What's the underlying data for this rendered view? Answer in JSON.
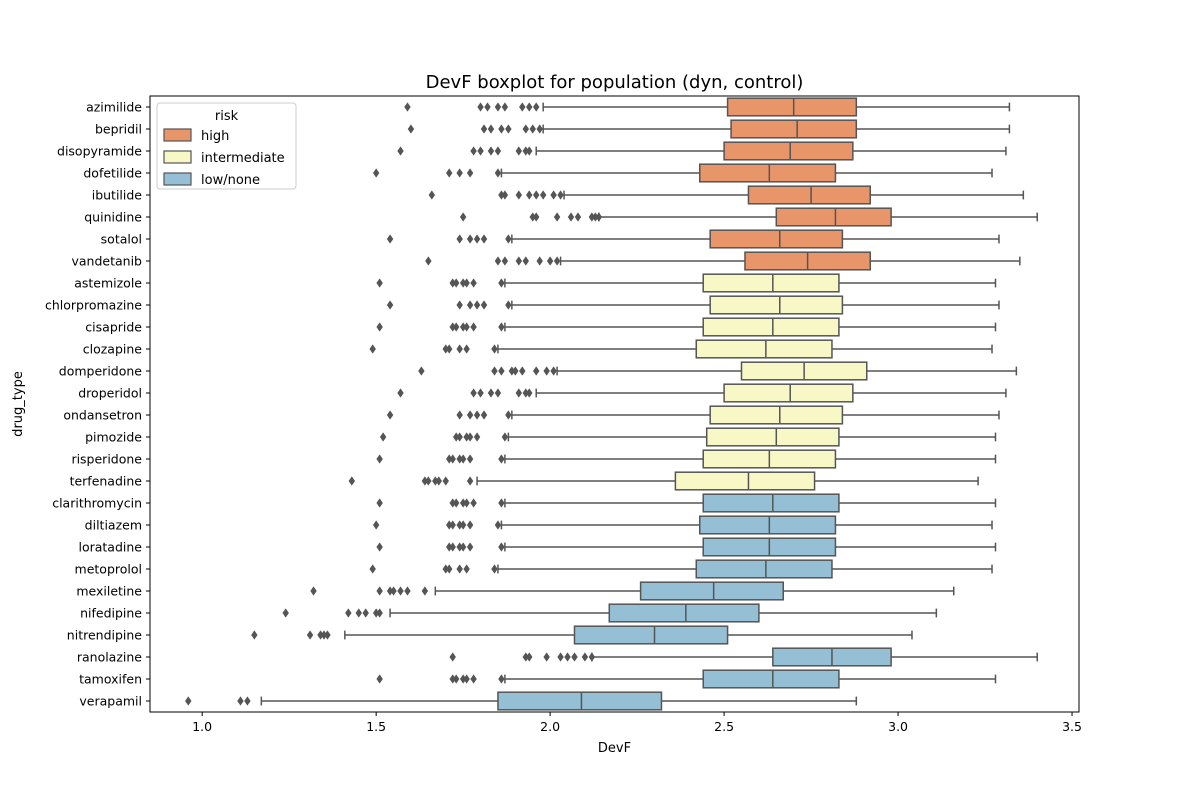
{
  "chart_data": {
    "type": "boxplot",
    "orientation": "horizontal",
    "title": "DevF boxplot for population (dyn, control)",
    "xlabel": "DevF",
    "ylabel": "drug_type",
    "xlim": [
      0.85,
      3.52
    ],
    "xticks": [
      1.0,
      1.5,
      2.0,
      2.5,
      3.0,
      3.5
    ],
    "xtick_labels": [
      "1.0",
      "1.5",
      "2.0",
      "2.5",
      "3.0",
      "3.5"
    ],
    "grid": false,
    "legend": {
      "title": "risk",
      "position": "upper-left",
      "entries": [
        {
          "label": "high",
          "color": "#e8956a"
        },
        {
          "label": "intermediate",
          "color": "#f8f7c6"
        },
        {
          "label": "low/none",
          "color": "#94bfd5"
        }
      ]
    },
    "colors": {
      "high": "#e8956a",
      "intermediate": "#f8f7c6",
      "low/none": "#94bfd5",
      "edge": "#555555",
      "outlier": "#555555"
    },
    "boxes": [
      {
        "drug": "azimilide",
        "risk": "high",
        "whisker_low": 1.98,
        "q1": 2.51,
        "median": 2.7,
        "q3": 2.88,
        "whisker_high": 3.32,
        "outliers": [
          1.59,
          1.8,
          1.82,
          1.85,
          1.87,
          1.92,
          1.94,
          1.96
        ]
      },
      {
        "drug": "bepridil",
        "risk": "high",
        "whisker_low": 1.98,
        "q1": 2.52,
        "median": 2.71,
        "q3": 2.88,
        "whisker_high": 3.32,
        "outliers": [
          1.6,
          1.81,
          1.83,
          1.86,
          1.88,
          1.93,
          1.95,
          1.97
        ]
      },
      {
        "drug": "disopyramide",
        "risk": "high",
        "whisker_low": 1.96,
        "q1": 2.5,
        "median": 2.69,
        "q3": 2.87,
        "whisker_high": 3.31,
        "outliers": [
          1.57,
          1.78,
          1.8,
          1.83,
          1.85,
          1.91,
          1.93,
          1.94
        ]
      },
      {
        "drug": "dofetilide",
        "risk": "high",
        "whisker_low": 1.86,
        "q1": 2.43,
        "median": 2.63,
        "q3": 2.82,
        "whisker_high": 3.27,
        "outliers": [
          1.5,
          1.71,
          1.74,
          1.77,
          1.85
        ]
      },
      {
        "drug": "ibutilide",
        "risk": "high",
        "whisker_low": 2.04,
        "q1": 2.57,
        "median": 2.75,
        "q3": 2.92,
        "whisker_high": 3.36,
        "outliers": [
          1.66,
          1.86,
          1.87,
          1.91,
          1.94,
          1.96,
          1.98,
          2.01,
          2.03
        ]
      },
      {
        "drug": "quinidine",
        "risk": "high",
        "whisker_low": 2.14,
        "q1": 2.65,
        "median": 2.82,
        "q3": 2.98,
        "whisker_high": 3.4,
        "outliers": [
          1.75,
          1.95,
          1.96,
          2.02,
          2.06,
          2.08,
          2.12,
          2.13,
          2.14
        ]
      },
      {
        "drug": "sotalol",
        "risk": "high",
        "whisker_low": 1.89,
        "q1": 2.46,
        "median": 2.66,
        "q3": 2.84,
        "whisker_high": 3.29,
        "outliers": [
          1.54,
          1.74,
          1.77,
          1.79,
          1.81,
          1.88
        ]
      },
      {
        "drug": "vandetanib",
        "risk": "high",
        "whisker_low": 2.03,
        "q1": 2.56,
        "median": 2.74,
        "q3": 2.92,
        "whisker_high": 3.35,
        "outliers": [
          1.65,
          1.85,
          1.87,
          1.91,
          1.93,
          1.97,
          2.0,
          2.02
        ]
      },
      {
        "drug": "astemizole",
        "risk": "intermediate",
        "whisker_low": 1.87,
        "q1": 2.44,
        "median": 2.64,
        "q3": 2.83,
        "whisker_high": 3.28,
        "outliers": [
          1.51,
          1.72,
          1.73,
          1.75,
          1.76,
          1.78,
          1.86
        ]
      },
      {
        "drug": "chlorpromazine",
        "risk": "intermediate",
        "whisker_low": 1.89,
        "q1": 2.46,
        "median": 2.66,
        "q3": 2.84,
        "whisker_high": 3.29,
        "outliers": [
          1.54,
          1.74,
          1.77,
          1.79,
          1.81,
          1.88
        ]
      },
      {
        "drug": "cisapride",
        "risk": "intermediate",
        "whisker_low": 1.87,
        "q1": 2.44,
        "median": 2.64,
        "q3": 2.83,
        "whisker_high": 3.28,
        "outliers": [
          1.51,
          1.72,
          1.73,
          1.75,
          1.76,
          1.78,
          1.86
        ]
      },
      {
        "drug": "clozapine",
        "risk": "intermediate",
        "whisker_low": 1.85,
        "q1": 2.42,
        "median": 2.62,
        "q3": 2.81,
        "whisker_high": 3.27,
        "outliers": [
          1.49,
          1.7,
          1.71,
          1.74,
          1.76,
          1.84
        ]
      },
      {
        "drug": "domperidone",
        "risk": "intermediate",
        "whisker_low": 2.02,
        "q1": 2.55,
        "median": 2.73,
        "q3": 2.91,
        "whisker_high": 3.34,
        "outliers": [
          1.63,
          1.84,
          1.86,
          1.89,
          1.9,
          1.92,
          1.96,
          1.99,
          2.01
        ]
      },
      {
        "drug": "droperidol",
        "risk": "intermediate",
        "whisker_low": 1.96,
        "q1": 2.5,
        "median": 2.69,
        "q3": 2.87,
        "whisker_high": 3.31,
        "outliers": [
          1.57,
          1.78,
          1.8,
          1.83,
          1.85,
          1.91,
          1.93,
          1.94
        ]
      },
      {
        "drug": "ondansetron",
        "risk": "intermediate",
        "whisker_low": 1.89,
        "q1": 2.46,
        "median": 2.66,
        "q3": 2.84,
        "whisker_high": 3.29,
        "outliers": [
          1.54,
          1.74,
          1.77,
          1.79,
          1.81,
          1.88
        ]
      },
      {
        "drug": "pimozide",
        "risk": "intermediate",
        "whisker_low": 1.88,
        "q1": 2.45,
        "median": 2.65,
        "q3": 2.83,
        "whisker_high": 3.28,
        "outliers": [
          1.52,
          1.73,
          1.74,
          1.76,
          1.77,
          1.79,
          1.87
        ]
      },
      {
        "drug": "risperidone",
        "risk": "intermediate",
        "whisker_low": 1.87,
        "q1": 2.44,
        "median": 2.63,
        "q3": 2.82,
        "whisker_high": 3.28,
        "outliers": [
          1.51,
          1.71,
          1.72,
          1.74,
          1.75,
          1.77,
          1.86
        ]
      },
      {
        "drug": "terfenadine",
        "risk": "intermediate",
        "whisker_low": 1.79,
        "q1": 2.36,
        "median": 2.57,
        "q3": 2.76,
        "whisker_high": 3.23,
        "outliers": [
          1.43,
          1.64,
          1.65,
          1.67,
          1.68,
          1.7,
          1.77
        ]
      },
      {
        "drug": "clarithromycin",
        "risk": "low/none",
        "whisker_low": 1.87,
        "q1": 2.44,
        "median": 2.64,
        "q3": 2.83,
        "whisker_high": 3.28,
        "outliers": [
          1.51,
          1.72,
          1.73,
          1.75,
          1.76,
          1.78,
          1.86
        ]
      },
      {
        "drug": "diltiazem",
        "risk": "low/none",
        "whisker_low": 1.86,
        "q1": 2.43,
        "median": 2.63,
        "q3": 2.82,
        "whisker_high": 3.27,
        "outliers": [
          1.5,
          1.71,
          1.72,
          1.74,
          1.75,
          1.77,
          1.85
        ]
      },
      {
        "drug": "loratadine",
        "risk": "low/none",
        "whisker_low": 1.87,
        "q1": 2.44,
        "median": 2.63,
        "q3": 2.82,
        "whisker_high": 3.28,
        "outliers": [
          1.51,
          1.71,
          1.72,
          1.74,
          1.75,
          1.77,
          1.86
        ]
      },
      {
        "drug": "metoprolol",
        "risk": "low/none",
        "whisker_low": 1.85,
        "q1": 2.42,
        "median": 2.62,
        "q3": 2.81,
        "whisker_high": 3.27,
        "outliers": [
          1.49,
          1.7,
          1.71,
          1.74,
          1.76,
          1.84
        ]
      },
      {
        "drug": "mexiletine",
        "risk": "low/none",
        "whisker_low": 1.67,
        "q1": 2.26,
        "median": 2.47,
        "q3": 2.67,
        "whisker_high": 3.16,
        "outliers": [
          1.32,
          1.51,
          1.54,
          1.55,
          1.57,
          1.59,
          1.64
        ]
      },
      {
        "drug": "nifedipine",
        "risk": "low/none",
        "whisker_low": 1.54,
        "q1": 2.17,
        "median": 2.39,
        "q3": 2.6,
        "whisker_high": 3.11,
        "outliers": [
          1.24,
          1.42,
          1.45,
          1.47,
          1.5,
          1.51
        ]
      },
      {
        "drug": "nitrendipine",
        "risk": "low/none",
        "whisker_low": 1.41,
        "q1": 2.07,
        "median": 2.3,
        "q3": 2.51,
        "whisker_high": 3.04,
        "outliers": [
          1.15,
          1.31,
          1.34,
          1.35,
          1.36
        ]
      },
      {
        "drug": "ranolazine",
        "risk": "low/none",
        "whisker_low": 2.12,
        "q1": 2.64,
        "median": 2.81,
        "q3": 2.98,
        "whisker_high": 3.4,
        "outliers": [
          1.72,
          1.93,
          1.94,
          1.99,
          2.03,
          2.05,
          2.07,
          2.1,
          2.12
        ]
      },
      {
        "drug": "tamoxifen",
        "risk": "low/none",
        "whisker_low": 1.87,
        "q1": 2.44,
        "median": 2.64,
        "q3": 2.83,
        "whisker_high": 3.28,
        "outliers": [
          1.51,
          1.72,
          1.73,
          1.75,
          1.76,
          1.78,
          1.86
        ]
      },
      {
        "drug": "verapamil",
        "risk": "low/none",
        "whisker_low": 1.17,
        "q1": 1.85,
        "median": 2.09,
        "q3": 2.32,
        "whisker_high": 2.88,
        "outliers": [
          0.96,
          1.11,
          1.13
        ]
      }
    ]
  }
}
